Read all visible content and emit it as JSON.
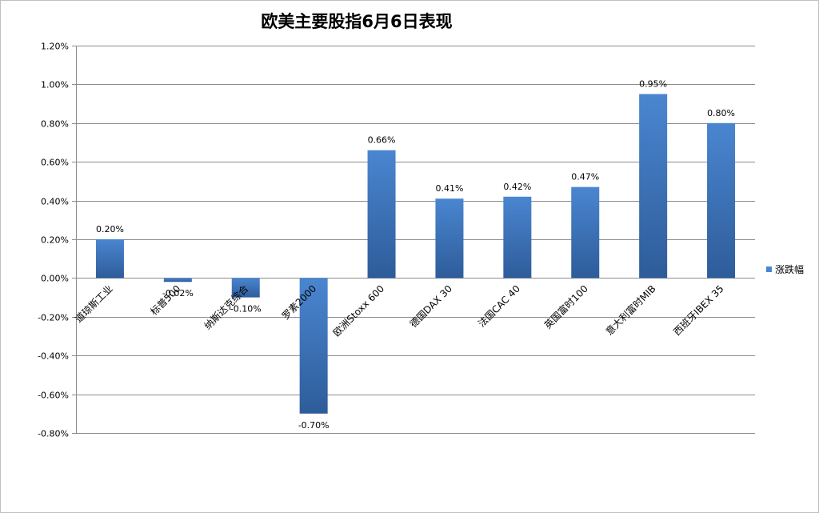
{
  "chart_data": {
    "type": "bar",
    "title": "欧美主要股指6月6日表现",
    "categories": [
      "道琼斯工业",
      "标普500",
      "纳斯达克综合",
      "罗素2000",
      "欧洲Stoxx 600",
      "德国DAX 30",
      "法国CAC 40",
      "英国富时100",
      "意大利富时MIB",
      "西班牙IBEX 35"
    ],
    "series": [
      {
        "name": "涨跌幅",
        "values": [
          0.2,
          -0.02,
          -0.1,
          -0.7,
          0.66,
          0.41,
          0.42,
          0.47,
          0.95,
          0.8
        ]
      }
    ],
    "data_labels": [
      "0.20%",
      "-0.02%",
      "-0.10%",
      "-0.70%",
      "0.66%",
      "0.41%",
      "0.42%",
      "0.47%",
      "0.95%",
      "0.80%"
    ],
    "y_ticks": [
      "1.20%",
      "1.00%",
      "0.80%",
      "0.60%",
      "0.40%",
      "0.20%",
      "0.00%",
      "-0.20%",
      "-0.40%",
      "-0.60%",
      "-0.80%"
    ],
    "ylim": [
      -0.8,
      1.2
    ],
    "xlabel": "",
    "ylabel": "",
    "grid": true,
    "legend": "right",
    "colors": {
      "bar_light": "#4a86d0",
      "bar_dark": "#2e5c9a",
      "grid": "#8c8c8c"
    }
  }
}
